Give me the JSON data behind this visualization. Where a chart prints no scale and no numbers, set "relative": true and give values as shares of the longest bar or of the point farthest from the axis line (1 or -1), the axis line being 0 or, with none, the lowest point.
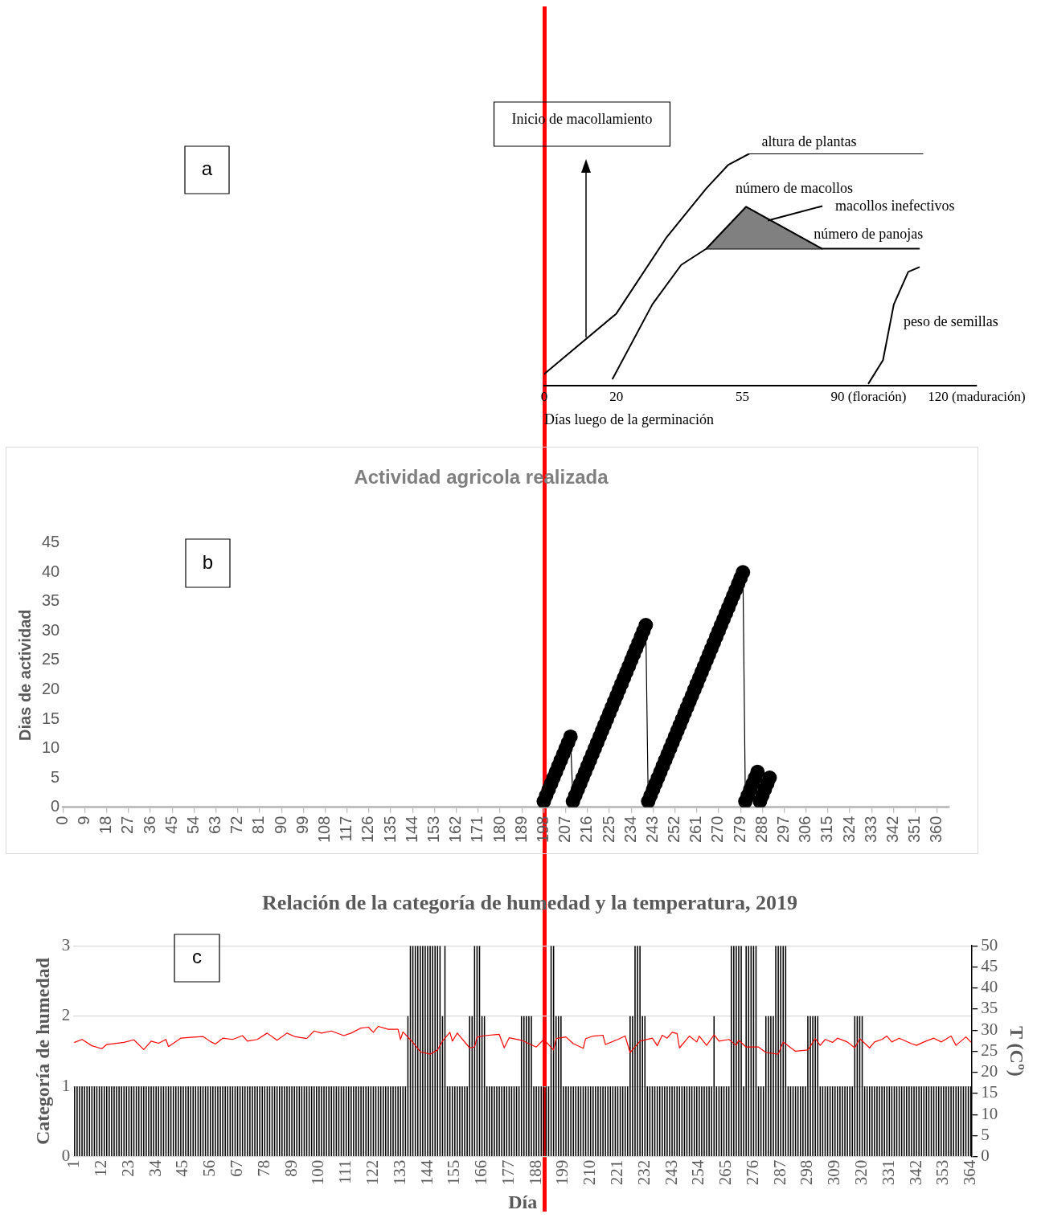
{
  "chart_data": [
    {
      "type": "line",
      "relative": true,
      "xlabel": "Días luego de la germinación",
      "xlim": [
        0,
        120
      ],
      "xticks": [
        0,
        20,
        55,
        {
          "value": 90,
          "label": "90 (floración)"
        },
        {
          "value": 120,
          "label": "120 (maduración)"
        }
      ],
      "tick_labels": "x",
      "annotations": [
        "a",
        "Inicio de macollamiento"
      ],
      "series": [
        {
          "name": "altura de plantas",
          "color": "#000000",
          "x": [
            0,
            20,
            34,
            45,
            51,
            57,
            105
          ],
          "values": [
            0.05,
            0.31,
            0.64,
            0.85,
            0.95,
            1,
            1
          ]
        },
        {
          "name": "número de macollos",
          "color": "#000000",
          "x": [
            19,
            30,
            38,
            45,
            56,
            77
          ],
          "values": [
            0.03,
            0.35,
            0.52,
            0.59,
            0.77,
            0.59
          ]
        },
        {
          "name": "macollos inefectivos",
          "type": "area",
          "color": "#808080",
          "x": [
            45,
            56,
            77
          ],
          "values": [
            0.59,
            0.77,
            0.59
          ]
        },
        {
          "name": "número de panojas",
          "color": "#000000",
          "x": [
            45,
            104
          ],
          "values": [
            0.59,
            0.59
          ]
        },
        {
          "name": "peso de semillas",
          "color": "#000000",
          "x": [
            90,
            94,
            97,
            101,
            104
          ],
          "values": [
            0.01,
            0.11,
            0.35,
            0.49,
            0.51
          ]
        }
      ]
    },
    {
      "type": "line",
      "title": "Actividad agricola realizada",
      "ylabel": "Dias de actividad",
      "marker": "circle",
      "annotations": [
        "b"
      ],
      "xlim": [
        0,
        365
      ],
      "xticks": [
        0,
        9,
        18,
        27,
        36,
        45,
        54,
        63,
        72,
        81,
        90,
        99,
        108,
        117,
        126,
        135,
        144,
        153,
        162,
        171,
        180,
        189,
        198,
        207,
        216,
        225,
        234,
        243,
        252,
        261,
        270,
        279,
        288,
        297,
        306,
        315,
        324,
        333,
        342,
        351,
        360
      ],
      "ylim": [
        0,
        45
      ],
      "yticks": [
        0,
        5,
        10,
        15,
        20,
        25,
        30,
        35,
        40,
        45
      ],
      "series": [
        {
          "color": "#000000",
          "x": [
            198,
            199,
            200,
            201,
            202,
            203,
            204,
            205,
            206,
            207,
            208,
            209,
            210,
            211,
            212,
            213,
            214,
            215,
            216,
            217,
            218,
            219,
            220,
            221,
            222,
            223,
            224,
            225,
            226,
            227,
            228,
            229,
            230,
            231,
            232,
            233,
            234,
            235,
            236,
            237,
            238,
            239,
            240,
            241,
            242,
            243,
            244,
            245,
            246,
            247,
            248,
            249,
            250,
            251,
            252,
            253,
            254,
            255,
            256,
            257,
            258,
            259,
            260,
            261,
            262,
            263,
            264,
            265,
            266,
            267,
            268,
            269,
            270,
            271,
            272,
            273,
            274,
            275,
            276,
            277,
            278,
            279,
            280,
            281,
            282,
            283,
            284,
            285,
            286,
            287,
            288,
            289,
            290,
            291
          ],
          "values": [
            1,
            2,
            3,
            4,
            5,
            6,
            7,
            8,
            9,
            10,
            11,
            12,
            1,
            2,
            3,
            4,
            5,
            6,
            7,
            8,
            9,
            10,
            11,
            12,
            13,
            14,
            15,
            16,
            17,
            18,
            19,
            20,
            21,
            22,
            23,
            24,
            25,
            26,
            27,
            28,
            29,
            30,
            31,
            1,
            2,
            3,
            4,
            5,
            6,
            7,
            8,
            9,
            10,
            11,
            12,
            13,
            14,
            15,
            16,
            17,
            18,
            19,
            20,
            21,
            22,
            23,
            24,
            25,
            26,
            27,
            28,
            29,
            30,
            31,
            32,
            33,
            34,
            35,
            36,
            37,
            38,
            39,
            40,
            1,
            2,
            3,
            4,
            5,
            6,
            1,
            2,
            3,
            4,
            5
          ]
        }
      ]
    },
    {
      "type": "bar",
      "title": "Relación de la categoría de humedad y la temperatura, 2019",
      "xlabel": "Día",
      "ylabel": "Categoría de humedad",
      "y2label": "T (Cº)",
      "grid": "y",
      "annotations": [
        "c"
      ],
      "xlim": [
        0.5,
        364.5
      ],
      "xticks": [
        1,
        12,
        23,
        34,
        45,
        56,
        67,
        78,
        89,
        100,
        111,
        122,
        133,
        144,
        155,
        166,
        177,
        188,
        199,
        210,
        221,
        232,
        243,
        254,
        265,
        276,
        287,
        298,
        309,
        320,
        331,
        342,
        353,
        364
      ],
      "ylim": [
        0,
        3
      ],
      "yticks": [
        0,
        1,
        2,
        3
      ],
      "y2lim": [
        0,
        50
      ],
      "y2ticks": [
        0,
        5,
        10,
        15,
        20,
        25,
        30,
        35,
        40,
        45,
        50
      ],
      "x": [
        1,
        2,
        3,
        4,
        5,
        6,
        7,
        8,
        9,
        10,
        11,
        12,
        13,
        14,
        15,
        16,
        17,
        18,
        19,
        20,
        21,
        22,
        23,
        24,
        25,
        26,
        27,
        28,
        29,
        30,
        31,
        32,
        33,
        34,
        35,
        36,
        37,
        38,
        39,
        40,
        41,
        42,
        43,
        44,
        45,
        46,
        47,
        48,
        49,
        50,
        51,
        52,
        53,
        54,
        55,
        56,
        57,
        58,
        59,
        60,
        61,
        62,
        63,
        64,
        65,
        66,
        67,
        68,
        69,
        70,
        71,
        72,
        73,
        74,
        75,
        76,
        77,
        78,
        79,
        80,
        81,
        82,
        83,
        84,
        85,
        86,
        87,
        88,
        89,
        90,
        91,
        92,
        93,
        94,
        95,
        96,
        97,
        98,
        99,
        100,
        101,
        102,
        103,
        104,
        105,
        106,
        107,
        108,
        109,
        110,
        111,
        112,
        113,
        114,
        115,
        116,
        117,
        118,
        119,
        120,
        121,
        122,
        123,
        124,
        125,
        126,
        127,
        128,
        129,
        130,
        131,
        132,
        133,
        134,
        135,
        136,
        137,
        138,
        139,
        140,
        141,
        142,
        143,
        144,
        145,
        146,
        147,
        148,
        149,
        150,
        151,
        152,
        153,
        154,
        155,
        156,
        157,
        158,
        159,
        160,
        161,
        162,
        163,
        164,
        165,
        166,
        167,
        168,
        169,
        170,
        171,
        172,
        173,
        174,
        175,
        176,
        177,
        178,
        179,
        180,
        181,
        182,
        183,
        184,
        185,
        186,
        187,
        188,
        189,
        190,
        191,
        192,
        193,
        194,
        195,
        196,
        197,
        198,
        199,
        200,
        201,
        202,
        203,
        204,
        205,
        206,
        207,
        208,
        209,
        210,
        211,
        212,
        213,
        214,
        215,
        216,
        217,
        218,
        219,
        220,
        221,
        222,
        223,
        224,
        225,
        226,
        227,
        228,
        229,
        230,
        231,
        232,
        233,
        234,
        235,
        236,
        237,
        238,
        239,
        240,
        241,
        242,
        243,
        244,
        245,
        246,
        247,
        248,
        249,
        250,
        251,
        252,
        253,
        254,
        255,
        256,
        257,
        258,
        259,
        260,
        261,
        262,
        263,
        264,
        265,
        266,
        267,
        268,
        269,
        270,
        271,
        272,
        273,
        274,
        275,
        276,
        277,
        278,
        279,
        280,
        281,
        282,
        283,
        284,
        285,
        286,
        287,
        288,
        289,
        290,
        291,
        292,
        293,
        294,
        295,
        296,
        297,
        298,
        299,
        300,
        301,
        302,
        303,
        304,
        305,
        306,
        307,
        308,
        309,
        310,
        311,
        312,
        313,
        314,
        315,
        316,
        317,
        318,
        319,
        320,
        321,
        322,
        323,
        324,
        325,
        326,
        327,
        328,
        329,
        330,
        331,
        332,
        333,
        334,
        335,
        336,
        337,
        338,
        339,
        340,
        341,
        342,
        343,
        344,
        345,
        346,
        347,
        348,
        349,
        350,
        351,
        352,
        353,
        354,
        355,
        356,
        357,
        358,
        359,
        360,
        361,
        362,
        363,
        364
      ],
      "series": [
        {
          "type": "bar",
          "color": "#000000",
          "values": [
            1,
            1,
            1,
            1,
            1,
            1,
            1,
            1,
            1,
            1,
            1,
            1,
            1,
            1,
            1,
            1,
            1,
            1,
            1,
            1,
            1,
            1,
            1,
            1,
            1,
            1,
            1,
            1,
            1,
            1,
            1,
            1,
            1,
            1,
            1,
            1,
            1,
            1,
            1,
            1,
            1,
            1,
            1,
            1,
            1,
            1,
            1,
            1,
            1,
            1,
            1,
            1,
            1,
            1,
            1,
            1,
            1,
            1,
            1,
            1,
            1,
            1,
            1,
            1,
            1,
            1,
            1,
            1,
            1,
            1,
            1,
            1,
            1,
            1,
            1,
            1,
            1,
            1,
            1,
            1,
            1,
            1,
            1,
            1,
            1,
            1,
            1,
            1,
            1,
            1,
            1,
            1,
            1,
            1,
            1,
            1,
            1,
            1,
            1,
            1,
            1,
            1,
            1,
            1,
            1,
            1,
            1,
            1,
            1,
            1,
            1,
            1,
            1,
            1,
            1,
            1,
            1,
            1,
            1,
            1,
            1,
            1,
            1,
            1,
            1,
            1,
            1,
            1,
            1,
            1,
            1,
            1,
            1,
            1,
            1,
            2,
            3,
            3,
            3,
            3,
            3,
            3,
            3,
            3,
            3,
            3,
            3,
            3,
            3,
            2,
            3,
            1,
            1,
            1,
            1,
            1,
            1,
            1,
            1,
            1,
            2,
            2,
            3,
            3,
            3,
            2,
            2,
            1,
            1,
            1,
            1,
            1,
            1,
            1,
            1,
            1,
            1,
            1,
            1,
            1,
            1,
            2,
            2,
            2,
            2,
            2,
            1,
            1,
            1,
            1,
            1,
            1,
            1,
            3,
            3,
            2,
            2,
            2,
            1,
            1,
            1,
            1,
            1,
            1,
            1,
            1,
            1,
            1,
            1,
            1,
            1,
            1,
            1,
            1,
            1,
            1,
            1,
            1,
            1,
            1,
            1,
            1,
            1,
            1,
            1,
            2,
            2,
            3,
            3,
            3,
            2,
            2,
            1,
            1,
            1,
            1,
            1,
            1,
            1,
            1,
            1,
            1,
            1,
            1,
            1,
            1,
            1,
            1,
            1,
            1,
            1,
            1,
            1,
            1,
            1,
            1,
            1,
            1,
            1,
            2,
            1,
            1,
            1,
            1,
            1,
            1,
            3,
            3,
            3,
            3,
            3,
            1,
            3,
            3,
            3,
            3,
            3,
            1,
            1,
            1,
            2,
            2,
            2,
            2,
            3,
            3,
            3,
            3,
            3,
            1,
            1,
            1,
            1,
            1,
            1,
            1,
            1,
            2,
            2,
            2,
            2,
            2,
            1,
            1,
            1,
            1,
            1,
            1,
            1,
            1,
            1,
            1,
            1,
            1,
            1,
            1,
            2,
            2,
            2,
            2,
            1,
            1,
            1,
            1,
            1,
            1,
            1,
            1,
            1,
            1,
            1,
            1,
            1,
            1,
            1,
            1,
            1,
            1,
            1,
            1,
            1,
            1,
            1,
            1,
            1,
            1,
            1,
            1,
            1,
            1,
            1,
            1,
            1,
            1,
            1,
            1,
            1,
            1,
            1,
            1,
            1,
            1,
            1,
            1
          ]
        },
        {
          "type": "line",
          "axis": "y2",
          "color": "#ff0000",
          "x": [
            1,
            4,
            8,
            12,
            14,
            21,
            25,
            29,
            32,
            35,
            38,
            39,
            44,
            48,
            53,
            56,
            58,
            61,
            65,
            69,
            71,
            75,
            79,
            83,
            87,
            90,
            95,
            98,
            101,
            105,
            110,
            113,
            117,
            120,
            122,
            124,
            128,
            132,
            133,
            134,
            138,
            141,
            145,
            148,
            150,
            153,
            154,
            156,
            161,
            163,
            164,
            167,
            173,
            175,
            177,
            182,
            188,
            191,
            195,
            196,
            200,
            203,
            207,
            208,
            211,
            215,
            216,
            221,
            224,
            226,
            228,
            230,
            235,
            237,
            239,
            241,
            243,
            245,
            246,
            250,
            253,
            254,
            257,
            260,
            262,
            266,
            269,
            270,
            273,
            278,
            281,
            286,
            288,
            293,
            298,
            301,
            303,
            305,
            308,
            310,
            314,
            317,
            319,
            323,
            325,
            328,
            330,
            332,
            335,
            340,
            342,
            345,
            349,
            352,
            356,
            358,
            362,
            364
          ],
          "values": [
            27.1,
            27.8,
            26.3,
            25.6,
            26.6,
            27.1,
            27.7,
            25.4,
            27.4,
            26.9,
            27.8,
            26.1,
            28.1,
            28.3,
            28.5,
            27.3,
            26.7,
            28.1,
            27.8,
            28.7,
            27.4,
            27.8,
            29.3,
            27.6,
            29.3,
            28.5,
            28.0,
            29.8,
            29.3,
            29.8,
            28.7,
            29.3,
            30.5,
            30.7,
            29.5,
            30.9,
            30.2,
            30.2,
            27.8,
            29.6,
            27.1,
            24.9,
            24.3,
            25.3,
            27.4,
            29.5,
            27.4,
            29.3,
            25.8,
            26.0,
            28.3,
            28.7,
            29.0,
            25.8,
            28.2,
            27.6,
            26.0,
            27.8,
            25.3,
            28.0,
            28.4,
            26.8,
            25.7,
            28.0,
            28.6,
            28.8,
            26.6,
            27.8,
            28.6,
            24.7,
            26.0,
            27.4,
            28.1,
            26.3,
            28.8,
            28.1,
            29.5,
            29.2,
            25.8,
            28.6,
            27.2,
            28.6,
            26.4,
            28.9,
            27.4,
            27.8,
            26.4,
            27.6,
            26.0,
            26.0,
            24.7,
            24.3,
            27.2,
            25.0,
            25.3,
            28.0,
            26.4,
            27.8,
            27.1,
            28.1,
            27.2,
            25.8,
            28.0,
            25.8,
            27.2,
            27.8,
            28.6,
            27.2,
            28.1,
            26.8,
            26.4,
            27.2,
            28.1,
            27.2,
            28.6,
            26.4,
            28.4,
            27.2
          ]
        }
      ]
    }
  ]
}
